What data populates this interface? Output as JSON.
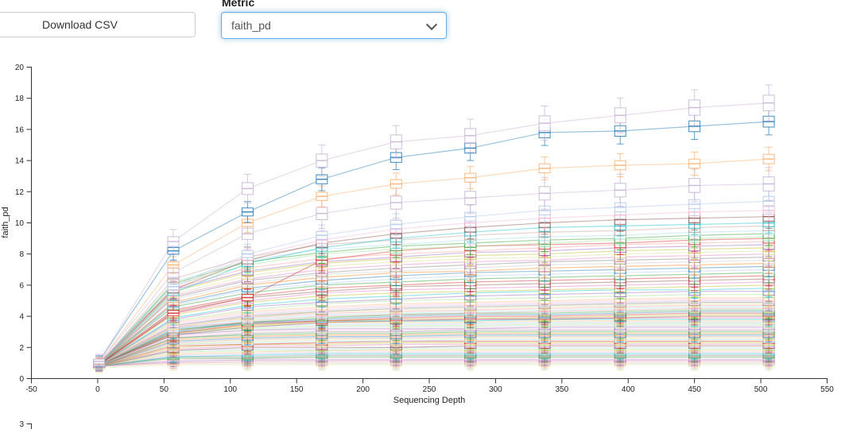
{
  "controls": {
    "download_button": "Download CSV",
    "metric_label": "Metric",
    "metric_value": "faith_pd"
  },
  "chart_data": {
    "type": "line",
    "subtype": "alpha-rarefaction curves with boxplots at each sampling depth",
    "title": "",
    "xlabel": "Sequencing Depth",
    "ylabel": "faith_pd",
    "xlim": [
      -50,
      550
    ],
    "ylim": [
      0,
      20
    ],
    "x_ticks": [
      -50,
      0,
      50,
      100,
      150,
      200,
      250,
      300,
      350,
      400,
      450,
      500,
      550
    ],
    "y_ticks": [
      0,
      2,
      4,
      6,
      8,
      10,
      12,
      14,
      16,
      18,
      20
    ],
    "grid": false,
    "legend_position": "none",
    "depths": [
      1,
      57,
      113,
      169,
      225,
      281,
      337,
      394,
      450,
      506
    ],
    "series_key": {
      "c": "line/box color",
      "s": "approx IQR half-spread (value units)",
      "v": "median faith_pd at each depth"
    },
    "series": [
      {
        "c": "#c5b0d5",
        "s": 0.5,
        "v": [
          1.1,
          8.8,
          12.2,
          14.0,
          15.2,
          15.6,
          16.4,
          16.9,
          17.4,
          17.7
        ]
      },
      {
        "c": "#1f77b4",
        "s": 0.35,
        "v": [
          1.1,
          8.2,
          10.7,
          12.8,
          14.2,
          14.8,
          15.8,
          15.9,
          16.2,
          16.5
        ]
      },
      {
        "c": "#fdae6b",
        "s": 0.3,
        "v": [
          1.0,
          7.3,
          10.0,
          11.7,
          12.5,
          12.9,
          13.5,
          13.7,
          13.8,
          14.1
        ]
      },
      {
        "c": "#c5b0d5",
        "s": 0.45,
        "v": [
          1.0,
          6.8,
          9.3,
          10.6,
          11.3,
          11.6,
          11.9,
          12.1,
          12.4,
          12.5
        ]
      },
      {
        "c": "#aec7e8",
        "s": 0.3,
        "v": [
          0.9,
          5.9,
          8.0,
          9.2,
          9.9,
          10.4,
          10.8,
          11.0,
          11.2,
          11.4
        ]
      },
      {
        "c": "#f7b6d2",
        "s": 0.25,
        "v": [
          1.0,
          5.8,
          7.8,
          8.9,
          9.6,
          10.0,
          10.3,
          10.5,
          10.7,
          10.8
        ]
      },
      {
        "c": "#8c564b",
        "s": 0.3,
        "v": [
          1.0,
          5.7,
          7.6,
          8.7,
          9.3,
          9.7,
          10.0,
          10.2,
          10.3,
          10.4
        ]
      },
      {
        "c": "#17becf",
        "s": 0.25,
        "v": [
          0.9,
          5.5,
          7.4,
          8.4,
          9.0,
          9.4,
          9.7,
          9.8,
          9.9,
          10.0
        ]
      },
      {
        "c": "#c49c94",
        "s": 0.3,
        "v": [
          0.9,
          6.4,
          7.8,
          8.6,
          8.9,
          9.2,
          9.4,
          9.5,
          9.7,
          9.8
        ]
      },
      {
        "c": "#9edae5",
        "s": 0.25,
        "v": [
          0.9,
          6.2,
          7.6,
          8.3,
          8.6,
          8.9,
          9.1,
          9.2,
          9.4,
          9.5
        ]
      },
      {
        "c": "#2ca02c",
        "s": 0.3,
        "v": [
          0.9,
          6.1,
          7.5,
          8.1,
          8.5,
          8.7,
          8.9,
          9.0,
          9.2,
          9.3
        ]
      },
      {
        "c": "#98df8a",
        "s": 0.25,
        "v": [
          0.9,
          6.0,
          7.3,
          8.0,
          8.3,
          8.5,
          8.7,
          8.9,
          9.0,
          9.1
        ]
      },
      {
        "c": "#d62728",
        "s": 0.3,
        "v": [
          0.9,
          4.2,
          5.2,
          7.6,
          8.2,
          8.5,
          8.6,
          8.7,
          8.9,
          9.0
        ]
      },
      {
        "c": "#ff9896",
        "s": 0.25,
        "v": [
          0.9,
          5.8,
          7.1,
          7.7,
          8.0,
          8.2,
          8.4,
          8.6,
          8.7,
          8.8
        ]
      },
      {
        "c": "#9467bd",
        "s": 0.3,
        "v": [
          0.9,
          5.7,
          6.9,
          7.5,
          7.8,
          8.1,
          8.2,
          8.4,
          8.5,
          8.6
        ]
      },
      {
        "c": "#bcbd22",
        "s": 0.25,
        "v": [
          0.9,
          5.6,
          6.8,
          7.4,
          7.7,
          7.9,
          8.0,
          8.2,
          8.3,
          8.4
        ]
      },
      {
        "c": "#dbdb8d",
        "s": 0.25,
        "v": [
          0.9,
          5.4,
          6.6,
          7.2,
          7.5,
          7.7,
          7.8,
          8.0,
          8.1,
          8.2
        ]
      },
      {
        "c": "#e377c2",
        "s": 0.3,
        "v": [
          0.9,
          5.3,
          6.4,
          7.0,
          7.3,
          7.5,
          7.6,
          7.8,
          7.9,
          8.0
        ]
      },
      {
        "c": "#7f7f7f",
        "s": 0.25,
        "v": [
          0.9,
          5.2,
          6.3,
          6.8,
          7.1,
          7.3,
          7.5,
          7.6,
          7.7,
          7.8
        ]
      },
      {
        "c": "#c7c7c7",
        "s": 0.25,
        "v": [
          0.9,
          5.1,
          6.1,
          6.7,
          6.9,
          7.1,
          7.3,
          7.4,
          7.5,
          7.6
        ]
      },
      {
        "c": "#ff7f0e",
        "s": 0.25,
        "v": [
          0.9,
          4.9,
          6.0,
          6.5,
          6.8,
          6.9,
          7.1,
          7.2,
          7.3,
          7.4
        ]
      },
      {
        "c": "#1f77b4",
        "s": 0.25,
        "v": [
          0.9,
          4.8,
          5.8,
          6.3,
          6.6,
          6.8,
          6.9,
          7.0,
          7.1,
          7.2
        ]
      },
      {
        "c": "#aec7e8",
        "s": 0.25,
        "v": [
          0.9,
          4.7,
          5.7,
          6.1,
          6.4,
          6.6,
          6.7,
          6.8,
          6.9,
          7.0
        ]
      },
      {
        "c": "#2ca02c",
        "s": 0.25,
        "v": [
          0.9,
          4.6,
          5.5,
          6.0,
          6.2,
          6.4,
          6.5,
          6.6,
          6.7,
          6.8
        ]
      },
      {
        "c": "#d62728",
        "s": 0.25,
        "v": [
          0.9,
          4.4,
          5.3,
          5.8,
          6.0,
          6.2,
          6.3,
          6.4,
          6.5,
          6.6
        ]
      },
      {
        "c": "#8c564b",
        "s": 0.25,
        "v": [
          0.9,
          4.3,
          5.2,
          5.6,
          5.9,
          6.0,
          6.1,
          6.2,
          6.3,
          6.4
        ]
      },
      {
        "c": "#e377c2",
        "s": 0.2,
        "v": [
          0.9,
          4.2,
          5.0,
          5.5,
          5.7,
          5.8,
          5.9,
          6.0,
          6.1,
          6.2
        ]
      },
      {
        "c": "#bcbd22",
        "s": 0.25,
        "v": [
          0.9,
          4.1,
          4.9,
          5.3,
          5.5,
          5.6,
          5.7,
          5.8,
          5.9,
          6.0
        ]
      },
      {
        "c": "#17becf",
        "s": 0.2,
        "v": [
          0.9,
          3.9,
          4.7,
          5.1,
          5.3,
          5.5,
          5.6,
          5.7,
          5.7,
          5.8
        ]
      },
      {
        "c": "#9467bd",
        "s": 0.25,
        "v": [
          0.9,
          3.8,
          4.6,
          4.9,
          5.1,
          5.3,
          5.4,
          5.5,
          5.6,
          5.6
        ]
      },
      {
        "c": "#98df8a",
        "s": 0.2,
        "v": [
          0.9,
          3.7,
          4.4,
          4.8,
          5.0,
          5.1,
          5.2,
          5.3,
          5.4,
          5.4
        ]
      },
      {
        "c": "#ffbb78",
        "s": 0.2,
        "v": [
          0.9,
          3.6,
          4.3,
          4.6,
          4.8,
          4.9,
          5.0,
          5.1,
          5.2,
          5.2
        ]
      },
      {
        "c": "#f7b6d2",
        "s": 0.2,
        "v": [
          0.9,
          3.5,
          4.2,
          4.5,
          4.7,
          4.8,
          4.9,
          5.0,
          5.1,
          5.1
        ]
      },
      {
        "c": "#c5b0d5",
        "s": 0.2,
        "v": [
          0.9,
          3.4,
          4.1,
          4.4,
          4.6,
          4.7,
          4.8,
          4.9,
          5.0,
          5.0
        ]
      },
      {
        "c": "#7f7f7f",
        "s": 0.2,
        "v": [
          0.9,
          3.4,
          4.0,
          4.3,
          4.5,
          4.6,
          4.7,
          4.8,
          4.9,
          4.9
        ]
      },
      {
        "c": "#dbdb8d",
        "s": 0.2,
        "v": [
          0.9,
          3.3,
          3.9,
          4.3,
          4.4,
          4.5,
          4.6,
          4.7,
          4.8,
          4.8
        ]
      },
      {
        "c": "#ff9896",
        "s": 0.2,
        "v": [
          0.9,
          3.3,
          3.9,
          4.2,
          4.3,
          4.4,
          4.5,
          4.6,
          4.7,
          4.7
        ]
      },
      {
        "c": "#9edae5",
        "s": 0.2,
        "v": [
          0.9,
          3.2,
          3.8,
          4.1,
          4.2,
          4.3,
          4.4,
          4.5,
          4.6,
          4.6
        ]
      },
      {
        "c": "#c49c94",
        "s": 0.2,
        "v": [
          0.9,
          3.1,
          3.7,
          4.0,
          4.1,
          4.2,
          4.3,
          4.4,
          4.5,
          4.5
        ]
      },
      {
        "c": "#2ca02c",
        "s": 0.2,
        "v": [
          0.9,
          3.1,
          3.6,
          3.9,
          4.1,
          4.2,
          4.2,
          4.3,
          4.4,
          4.4
        ]
      },
      {
        "c": "#1f77b4",
        "s": 0.2,
        "v": [
          0.9,
          3.0,
          3.6,
          3.8,
          4.0,
          4.1,
          4.1,
          4.2,
          4.3,
          4.3
        ]
      },
      {
        "c": "#d62728",
        "s": 0.2,
        "v": [
          0.9,
          2.9,
          3.5,
          3.7,
          3.9,
          4.0,
          4.0,
          4.1,
          4.2,
          4.2
        ]
      },
      {
        "c": "#bcbd22",
        "s": 0.2,
        "v": [
          0.9,
          2.9,
          3.4,
          3.7,
          3.8,
          3.9,
          3.9,
          4.0,
          4.1,
          4.1
        ]
      },
      {
        "c": "#8c564b",
        "s": 0.2,
        "v": [
          0.9,
          2.8,
          3.3,
          3.6,
          3.7,
          3.8,
          3.8,
          3.9,
          4.0,
          4.0
        ]
      },
      {
        "c": "#e377c2",
        "s": 0.15,
        "v": [
          0.8,
          3.3,
          3.6,
          3.7,
          3.8,
          3.8,
          3.9,
          3.9,
          3.9,
          3.9
        ]
      },
      {
        "c": "#17becf",
        "s": 0.15,
        "v": [
          0.8,
          3.2,
          3.5,
          3.7,
          3.7,
          3.7,
          3.8,
          3.8,
          3.8,
          3.8
        ]
      },
      {
        "c": "#ffbb78",
        "s": 0.15,
        "v": [
          0.8,
          3.1,
          3.4,
          3.6,
          3.6,
          3.6,
          3.7,
          3.7,
          3.7,
          3.7
        ]
      },
      {
        "c": "#aec7e8",
        "s": 0.15,
        "v": [
          0.8,
          3.0,
          3.3,
          3.5,
          3.5,
          3.5,
          3.6,
          3.6,
          3.6,
          3.6
        ]
      },
      {
        "c": "#98df8a",
        "s": 0.15,
        "v": [
          0.8,
          3.0,
          3.2,
          3.4,
          3.4,
          3.4,
          3.5,
          3.5,
          3.5,
          3.5
        ]
      },
      {
        "c": "#c7c7c7",
        "s": 0.15,
        "v": [
          0.8,
          2.9,
          3.1,
          3.3,
          3.3,
          3.3,
          3.4,
          3.4,
          3.4,
          3.4
        ]
      },
      {
        "c": "#9467bd",
        "s": 0.15,
        "v": [
          0.8,
          2.8,
          3.1,
          3.2,
          3.2,
          3.2,
          3.3,
          3.3,
          3.3,
          3.3
        ]
      },
      {
        "c": "#f7b6d2",
        "s": 0.15,
        "v": [
          0.8,
          2.7,
          3.0,
          3.1,
          3.1,
          3.2,
          3.2,
          3.2,
          3.2,
          3.2
        ]
      },
      {
        "c": "#7f7f7f",
        "s": 0.15,
        "v": [
          0.8,
          2.6,
          2.9,
          3.0,
          3.0,
          3.1,
          3.1,
          3.1,
          3.1,
          3.1
        ]
      },
      {
        "c": "#2ca02c",
        "s": 0.15,
        "v": [
          0.8,
          2.6,
          2.8,
          2.9,
          2.9,
          3.0,
          3.0,
          3.0,
          3.0,
          3.0
        ]
      },
      {
        "c": "#ff7f0e",
        "s": 0.15,
        "v": [
          0.8,
          2.5,
          2.7,
          2.8,
          2.8,
          2.9,
          2.9,
          2.9,
          2.9,
          2.9
        ]
      },
      {
        "c": "#1f77b4",
        "s": 0.15,
        "v": [
          0.8,
          2.4,
          2.6,
          2.7,
          2.7,
          2.8,
          2.8,
          2.8,
          2.8,
          2.8
        ]
      },
      {
        "c": "#c49c94",
        "s": 0.15,
        "v": [
          0.8,
          2.3,
          2.5,
          2.6,
          2.6,
          2.7,
          2.7,
          2.7,
          2.7,
          2.7
        ]
      },
      {
        "c": "#dbdb8d",
        "s": 0.15,
        "v": [
          0.8,
          2.2,
          2.4,
          2.5,
          2.5,
          2.6,
          2.6,
          2.6,
          2.6,
          2.6
        ]
      },
      {
        "c": "#9edae5",
        "s": 0.15,
        "v": [
          0.8,
          2.2,
          2.3,
          2.4,
          2.4,
          2.5,
          2.5,
          2.5,
          2.5,
          2.5
        ]
      },
      {
        "c": "#d62728",
        "s": 0.15,
        "v": [
          0.8,
          2.1,
          2.2,
          2.3,
          2.4,
          2.4,
          2.4,
          2.4,
          2.4,
          2.4
        ]
      },
      {
        "c": "#bcbd22",
        "s": 0.15,
        "v": [
          0.8,
          2.0,
          2.2,
          2.2,
          2.3,
          2.3,
          2.3,
          2.3,
          2.3,
          2.3
        ]
      },
      {
        "c": "#e377c2",
        "s": 0.15,
        "v": [
          0.8,
          1.9,
          2.1,
          2.1,
          2.2,
          2.2,
          2.2,
          2.2,
          2.2,
          2.2
        ]
      },
      {
        "c": "#8c564b",
        "s": 0.15,
        "v": [
          0.8,
          1.8,
          2.0,
          2.0,
          2.0,
          2.1,
          2.1,
          2.1,
          2.1,
          2.1
        ]
      },
      {
        "c": "#aec7e8",
        "s": 0.1,
        "v": [
          0.8,
          1.8,
          1.9,
          1.9,
          2.0,
          2.0,
          2.0,
          2.0,
          2.0,
          2.0
        ]
      },
      {
        "c": "#98df8a",
        "s": 0.1,
        "v": [
          0.8,
          1.7,
          1.8,
          1.8,
          1.9,
          1.9,
          1.9,
          1.9,
          1.9,
          1.9
        ]
      },
      {
        "c": "#ffbb78",
        "s": 0.1,
        "v": [
          0.8,
          1.6,
          1.7,
          1.8,
          1.8,
          1.8,
          1.8,
          1.8,
          1.8,
          1.8
        ]
      },
      {
        "c": "#c5b0d5",
        "s": 0.1,
        "v": [
          0.8,
          1.5,
          1.6,
          1.7,
          1.7,
          1.7,
          1.7,
          1.7,
          1.7,
          1.7
        ]
      },
      {
        "c": "#17becf",
        "s": 0.1,
        "v": [
          0.8,
          1.4,
          1.5,
          1.6,
          1.6,
          1.6,
          1.6,
          1.6,
          1.6,
          1.6
        ]
      },
      {
        "c": "#7f7f7f",
        "s": 0.1,
        "v": [
          0.8,
          1.4,
          1.4,
          1.5,
          1.5,
          1.5,
          1.5,
          1.5,
          1.5,
          1.5
        ]
      },
      {
        "c": "#2ca02c",
        "s": 0.1,
        "v": [
          0.8,
          1.3,
          1.3,
          1.4,
          1.4,
          1.4,
          1.4,
          1.4,
          1.4,
          1.4
        ]
      },
      {
        "c": "#f7b6d2",
        "s": 0.1,
        "v": [
          0.8,
          1.2,
          1.3,
          1.3,
          1.3,
          1.3,
          1.3,
          1.3,
          1.3,
          1.3
        ]
      },
      {
        "c": "#9467bd",
        "s": 0.1,
        "v": [
          0.8,
          1.1,
          1.2,
          1.2,
          1.2,
          1.2,
          1.2,
          1.2,
          1.2,
          1.2
        ]
      },
      {
        "c": "#ff9896",
        "s": 0.1,
        "v": [
          0.8,
          1.0,
          1.1,
          1.1,
          1.1,
          1.1,
          1.1,
          1.1,
          1.1,
          1.1
        ]
      },
      {
        "c": "#c7c7c7",
        "s": 0.1,
        "v": [
          0.8,
          1.0,
          1.0,
          1.0,
          1.0,
          1.0,
          1.0,
          1.0,
          1.0,
          1.0
        ]
      },
      {
        "c": "#dbdb8d",
        "s": 0.1,
        "v": [
          0.7,
          0.9,
          0.9,
          0.9,
          0.9,
          0.9,
          0.9,
          0.9,
          0.9,
          0.9
        ]
      }
    ]
  },
  "second_chart": {
    "top_tick_label": "3"
  },
  "style_colors": {
    "focus_ring": "#66afe9",
    "button_border": "#cccccc",
    "axis": "#333333",
    "tick_text": "#222222"
  }
}
